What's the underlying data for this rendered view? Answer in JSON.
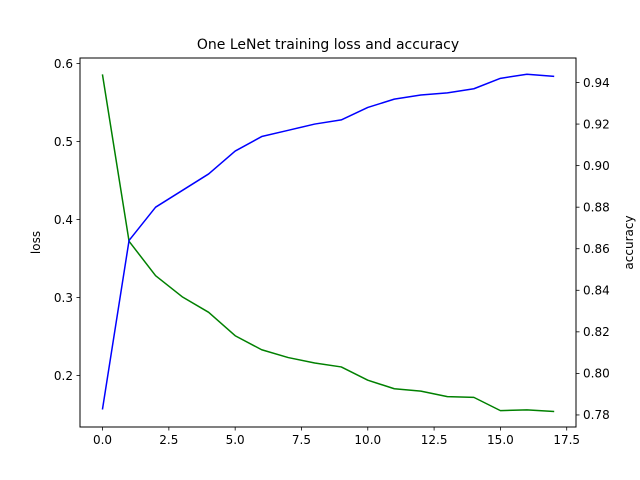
{
  "chart_data": {
    "type": "line",
    "title": "One LeNet training loss and accuracy",
    "xlabel": "",
    "x": [
      0,
      1,
      2,
      3,
      4,
      5,
      6,
      7,
      8,
      9,
      10,
      11,
      12,
      13,
      14,
      15,
      16,
      17
    ],
    "xlim": [
      -0.85,
      17.85
    ],
    "xticks": [
      0.0,
      2.5,
      5.0,
      7.5,
      10.0,
      12.5,
      15.0,
      17.5
    ],
    "xtick_labels": [
      "0.0",
      "2.5",
      "5.0",
      "7.5",
      "10.0",
      "12.5",
      "15.0",
      "17.5"
    ],
    "left_axis": {
      "label": "loss",
      "ylim": [
        0.134,
        0.607
      ],
      "ticks": [
        0.2,
        0.3,
        0.4,
        0.5,
        0.6
      ],
      "tick_labels": [
        "0.2",
        "0.3",
        "0.4",
        "0.5",
        "0.6"
      ]
    },
    "right_axis": {
      "label": "accuracy",
      "ylim": [
        0.7742,
        0.9518
      ],
      "ticks": [
        0.78,
        0.8,
        0.82,
        0.84,
        0.86,
        0.88,
        0.9,
        0.92,
        0.94
      ],
      "tick_labels": [
        "0.78",
        "0.80",
        "0.82",
        "0.84",
        "0.86",
        "0.88",
        "0.90",
        "0.92",
        "0.94"
      ]
    },
    "series": [
      {
        "axis": "left",
        "color": "#008000",
        "values": [
          0.585,
          0.372,
          0.328,
          0.301,
          0.281,
          0.251,
          0.233,
          0.223,
          0.216,
          0.211,
          0.194,
          0.183,
          0.18,
          0.173,
          0.172,
          0.155,
          0.156,
          0.154
        ]
      },
      {
        "axis": "right",
        "color": "#0000ff",
        "values": [
          0.783,
          0.864,
          0.88,
          0.888,
          0.896,
          0.907,
          0.914,
          0.917,
          0.92,
          0.922,
          0.928,
          0.932,
          0.934,
          0.935,
          0.937,
          0.942,
          0.944,
          0.943
        ]
      }
    ],
    "grid": false,
    "legend": "none"
  }
}
